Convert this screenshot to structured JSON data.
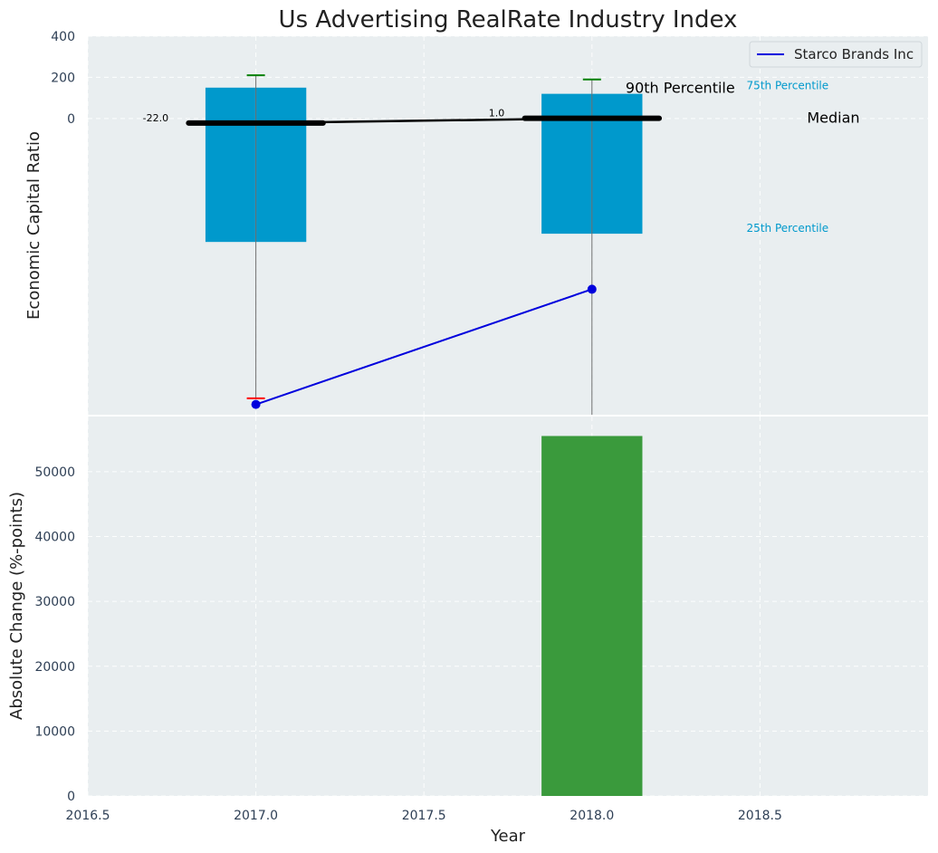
{
  "chart_data": {
    "type": "bar",
    "title": "Us Advertising RealRate Industry Index",
    "xlabel": "Year",
    "x_ticks": [
      "2016.5",
      "2017.0",
      "2017.5",
      "2018.0",
      "2018.5"
    ],
    "xlim": [
      2016.5,
      2019.0
    ],
    "grid": true,
    "colors": {
      "panel_bg": "#e9eef0",
      "box_fill": "#0099cc",
      "median_line": "#000000",
      "company_line": "#0000dd",
      "p90_cap": "#008000",
      "p10_cap": "#ff0000",
      "change_bar": "#3a9a3c",
      "annotation_blue": "#0099cc"
    },
    "top_panel": {
      "ylabel": "Economic Capital Ratio",
      "y_ticks": [
        "400",
        "200",
        "0"
      ],
      "ylim": [
        -1440,
        400
      ],
      "boxes": [
        {
          "year": 2017.0,
          "p25": -600,
          "p75": 150,
          "median": -22.0,
          "median_label": "-22.0",
          "p90": 210,
          "p10": -1360
        },
        {
          "year": 2018.0,
          "p25": -560,
          "p75": 120,
          "median": 1.0,
          "median_label": "1.0",
          "p90": 190,
          "p10": -1440
        }
      ],
      "company_series": {
        "name": "Starco Brands Inc",
        "x": [
          2017.0,
          2018.0
        ],
        "y": [
          -1390,
          -830
        ]
      },
      "legend": {
        "position": "top-right",
        "entries": [
          "Starco Brands Inc"
        ]
      },
      "annotations": {
        "p90": "90th Percentile",
        "p75": "75th Percentile",
        "median": "Median",
        "p25": "25th Percentile"
      }
    },
    "bottom_panel": {
      "ylabel": "Absolute Change (%-points)",
      "y_ticks": [
        "0",
        "10000",
        "20000",
        "30000",
        "40000",
        "50000"
      ],
      "ylim": [
        0,
        58500
      ],
      "bars": [
        {
          "year": 2018.0,
          "value": 55500
        }
      ]
    }
  }
}
